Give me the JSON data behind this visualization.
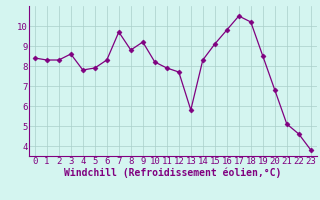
{
  "x": [
    0,
    1,
    2,
    3,
    4,
    5,
    6,
    7,
    8,
    9,
    10,
    11,
    12,
    13,
    14,
    15,
    16,
    17,
    18,
    19,
    20,
    21,
    22,
    23
  ],
  "y": [
    8.4,
    8.3,
    8.3,
    8.6,
    7.8,
    7.9,
    8.3,
    9.7,
    8.8,
    9.2,
    8.2,
    7.9,
    7.7,
    5.8,
    8.3,
    9.1,
    9.8,
    10.5,
    10.2,
    8.5,
    6.8,
    5.1,
    4.6,
    3.8
  ],
  "line_color": "#800080",
  "marker": "D",
  "markersize": 2.5,
  "linewidth": 0.9,
  "bg_color": "#d4f5f0",
  "grid_color": "#aacfca",
  "xlabel": "Windchill (Refroidissement éolien,°C)",
  "xlabel_color": "#800080",
  "xlabel_fontsize": 7,
  "tick_color": "#800080",
  "tick_fontsize": 6.5,
  "ylim": [
    3.5,
    11.0
  ],
  "xlim": [
    -0.5,
    23.5
  ],
  "yticks": [
    4,
    5,
    6,
    7,
    8,
    9,
    10
  ],
  "xticks": [
    0,
    1,
    2,
    3,
    4,
    5,
    6,
    7,
    8,
    9,
    10,
    11,
    12,
    13,
    14,
    15,
    16,
    17,
    18,
    19,
    20,
    21,
    22,
    23
  ],
  "fig_width": 3.2,
  "fig_height": 2.0,
  "dpi": 100
}
